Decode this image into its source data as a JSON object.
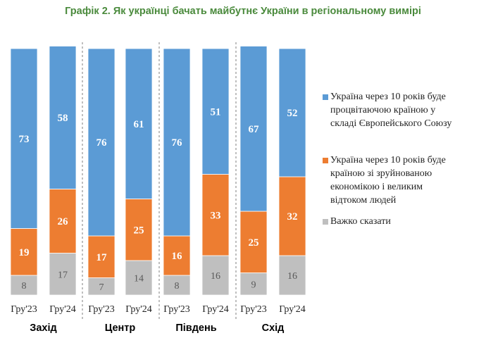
{
  "title": "Графік 2. Як українці бачать майбутнє України в регіональному вимірі",
  "colors": {
    "eu": "#5b9bd5",
    "ruined": "#ed7d31",
    "hard": "#bfbfbf"
  },
  "chart_data": {
    "type": "bar",
    "stacked": true,
    "categories": [
      "Гру'23",
      "Гру'24",
      "Гру'23",
      "Гру'24",
      "Гру'23",
      "Гру'24",
      "Гру'23",
      "Гру'24"
    ],
    "groups": [
      "Захід",
      "Центр",
      "Південь",
      "Схід"
    ],
    "series": [
      {
        "name": "Важко сказати",
        "values": [
          8,
          17,
          7,
          14,
          8,
          16,
          9,
          16
        ]
      },
      {
        "name": "Україна через 10 років буде країною зі зруйнованою економікою і великим відтоком людей",
        "values": [
          19,
          26,
          17,
          25,
          16,
          33,
          25,
          32
        ]
      },
      {
        "name": "Україна через 10 років буде процвітаючою країною у складі Європейського Союзу",
        "values": [
          73,
          58,
          76,
          61,
          76,
          51,
          67,
          52
        ]
      }
    ],
    "legend": {
      "position": "right",
      "items": [
        {
          "key": "eu",
          "lines": [
            "Україна через 10 років буде",
            "процвітаючою країною у",
            "складі Європейського Союзу"
          ]
        },
        {
          "key": "ruined",
          "lines": [
            "Україна через 10 років буде",
            "країною зі зруйнованою",
            "економікою і великим",
            "відтоком людей"
          ]
        },
        {
          "key": "hard",
          "lines": [
            "Важко сказати"
          ]
        }
      ]
    }
  }
}
